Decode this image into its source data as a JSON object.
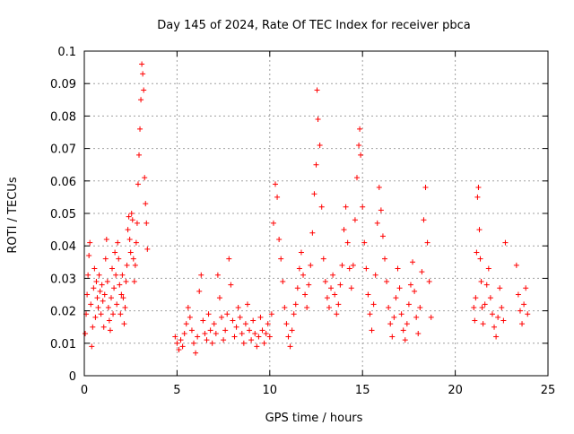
{
  "chart_data": {
    "type": "scatter",
    "title": "Day 145 of 2024, Rate Of TEC Index for receiver pbca",
    "xlabel": "GPS time / hours",
    "ylabel": "ROTI / TECUs",
    "xlim": [
      0,
      25
    ],
    "ylim": [
      0,
      0.1
    ],
    "xticks": [
      "0",
      "5",
      "10",
      "15",
      "20",
      "25"
    ],
    "yticks": [
      "0",
      "0.01",
      "0.02",
      "0.03",
      "0.04",
      "0.05",
      "0.06",
      "0.07",
      "0.08",
      "0.09",
      "0.1"
    ],
    "grid": true,
    "legend": "none",
    "marker": "+",
    "color": "#ff0000",
    "series": [
      {
        "points": [
          [
            0.05,
            0.013
          ],
          [
            0.1,
            0.019
          ],
          [
            0.15,
            0.025
          ],
          [
            0.2,
            0.031
          ],
          [
            0.25,
            0.037
          ],
          [
            0.3,
            0.041
          ],
          [
            0.35,
            0.022
          ],
          [
            0.4,
            0.009
          ],
          [
            0.45,
            0.015
          ],
          [
            0.5,
            0.027
          ],
          [
            0.55,
            0.033
          ],
          [
            0.6,
            0.018
          ],
          [
            0.65,
            0.029
          ],
          [
            0.7,
            0.024
          ],
          [
            0.75,
            0.021
          ],
          [
            0.8,
            0.031
          ],
          [
            0.85,
            0.026
          ],
          [
            0.9,
            0.019
          ],
          [
            0.95,
            0.028
          ],
          [
            1.0,
            0.023
          ],
          [
            1.05,
            0.015
          ],
          [
            1.1,
            0.025
          ],
          [
            1.15,
            0.036
          ],
          [
            1.2,
            0.042
          ],
          [
            1.25,
            0.029
          ],
          [
            1.3,
            0.021
          ],
          [
            1.35,
            0.017
          ],
          [
            1.4,
            0.014
          ],
          [
            1.45,
            0.024
          ],
          [
            1.5,
            0.033
          ],
          [
            1.55,
            0.019
          ],
          [
            1.6,
            0.027
          ],
          [
            1.65,
            0.038
          ],
          [
            1.7,
            0.031
          ],
          [
            1.75,
            0.022
          ],
          [
            1.8,
            0.041
          ],
          [
            1.85,
            0.036
          ],
          [
            1.9,
            0.028
          ],
          [
            1.95,
            0.019
          ],
          [
            2.0,
            0.025
          ],
          [
            2.05,
            0.031
          ],
          [
            2.1,
            0.024
          ],
          [
            2.15,
            0.016
          ],
          [
            2.2,
            0.021
          ],
          [
            2.25,
            0.029
          ],
          [
            2.3,
            0.034
          ],
          [
            2.35,
            0.045
          ],
          [
            2.4,
            0.049
          ],
          [
            2.45,
            0.042
          ],
          [
            2.5,
            0.038
          ],
          [
            2.55,
            0.05
          ],
          [
            2.6,
            0.048
          ],
          [
            2.65,
            0.036
          ],
          [
            2.7,
            0.029
          ],
          [
            2.75,
            0.034
          ],
          [
            2.8,
            0.041
          ],
          [
            2.85,
            0.047
          ],
          [
            2.9,
            0.059
          ],
          [
            2.95,
            0.068
          ],
          [
            3.0,
            0.076
          ],
          [
            3.05,
            0.085
          ],
          [
            3.1,
            0.096
          ],
          [
            3.15,
            0.093
          ],
          [
            3.2,
            0.088
          ],
          [
            3.25,
            0.061
          ],
          [
            3.3,
            0.053
          ],
          [
            3.35,
            0.047
          ],
          [
            3.4,
            0.039
          ],
          [
            4.9,
            0.012
          ],
          [
            5.0,
            0.01
          ],
          [
            5.1,
            0.008
          ],
          [
            5.2,
            0.011
          ],
          [
            5.3,
            0.009
          ],
          [
            5.4,
            0.013
          ],
          [
            5.5,
            0.016
          ],
          [
            5.6,
            0.021
          ],
          [
            5.7,
            0.018
          ],
          [
            5.8,
            0.014
          ],
          [
            5.9,
            0.01
          ],
          [
            6.0,
            0.007
          ],
          [
            6.1,
            0.012
          ],
          [
            6.2,
            0.026
          ],
          [
            6.3,
            0.031
          ],
          [
            6.4,
            0.017
          ],
          [
            6.5,
            0.013
          ],
          [
            6.6,
            0.011
          ],
          [
            6.7,
            0.019
          ],
          [
            6.8,
            0.014
          ],
          [
            6.9,
            0.01
          ],
          [
            7.0,
            0.016
          ],
          [
            7.1,
            0.013
          ],
          [
            7.2,
            0.031
          ],
          [
            7.3,
            0.024
          ],
          [
            7.4,
            0.018
          ],
          [
            7.5,
            0.011
          ],
          [
            7.6,
            0.014
          ],
          [
            7.7,
            0.019
          ],
          [
            7.8,
            0.036
          ],
          [
            7.9,
            0.028
          ],
          [
            8.0,
            0.017
          ],
          [
            8.1,
            0.012
          ],
          [
            8.2,
            0.015
          ],
          [
            8.3,
            0.021
          ],
          [
            8.4,
            0.018
          ],
          [
            8.5,
            0.013
          ],
          [
            8.6,
            0.01
          ],
          [
            8.7,
            0.016
          ],
          [
            8.8,
            0.022
          ],
          [
            8.9,
            0.014
          ],
          [
            9.0,
            0.011
          ],
          [
            9.1,
            0.017
          ],
          [
            9.2,
            0.013
          ],
          [
            9.3,
            0.009
          ],
          [
            9.4,
            0.012
          ],
          [
            9.5,
            0.018
          ],
          [
            9.6,
            0.014
          ],
          [
            9.7,
            0.01
          ],
          [
            9.8,
            0.013
          ],
          [
            9.9,
            0.016
          ],
          [
            10.0,
            0.012
          ],
          [
            10.1,
            0.019
          ],
          [
            10.2,
            0.047
          ],
          [
            10.3,
            0.059
          ],
          [
            10.4,
            0.055
          ],
          [
            10.5,
            0.042
          ],
          [
            10.6,
            0.036
          ],
          [
            10.7,
            0.029
          ],
          [
            10.8,
            0.021
          ],
          [
            10.9,
            0.016
          ],
          [
            11.0,
            0.012
          ],
          [
            11.1,
            0.009
          ],
          [
            11.2,
            0.014
          ],
          [
            11.3,
            0.019
          ],
          [
            11.4,
            0.022
          ],
          [
            11.5,
            0.027
          ],
          [
            11.6,
            0.033
          ],
          [
            11.7,
            0.038
          ],
          [
            11.8,
            0.031
          ],
          [
            11.9,
            0.025
          ],
          [
            12.0,
            0.021
          ],
          [
            12.1,
            0.028
          ],
          [
            12.2,
            0.034
          ],
          [
            12.3,
            0.044
          ],
          [
            12.4,
            0.056
          ],
          [
            12.5,
            0.065
          ],
          [
            12.55,
            0.088
          ],
          [
            12.6,
            0.079
          ],
          [
            12.7,
            0.071
          ],
          [
            12.8,
            0.052
          ],
          [
            12.9,
            0.036
          ],
          [
            13.0,
            0.029
          ],
          [
            13.1,
            0.024
          ],
          [
            13.2,
            0.021
          ],
          [
            13.3,
            0.027
          ],
          [
            13.4,
            0.031
          ],
          [
            13.5,
            0.025
          ],
          [
            13.6,
            0.019
          ],
          [
            13.7,
            0.022
          ],
          [
            13.8,
            0.028
          ],
          [
            13.9,
            0.034
          ],
          [
            14.0,
            0.045
          ],
          [
            14.1,
            0.052
          ],
          [
            14.2,
            0.041
          ],
          [
            14.3,
            0.033
          ],
          [
            14.4,
            0.027
          ],
          [
            14.5,
            0.034
          ],
          [
            14.6,
            0.048
          ],
          [
            14.7,
            0.061
          ],
          [
            14.8,
            0.071
          ],
          [
            14.85,
            0.076
          ],
          [
            14.9,
            0.068
          ],
          [
            15.0,
            0.052
          ],
          [
            15.1,
            0.041
          ],
          [
            15.2,
            0.033
          ],
          [
            15.3,
            0.025
          ],
          [
            15.4,
            0.019
          ],
          [
            15.5,
            0.014
          ],
          [
            15.6,
            0.022
          ],
          [
            15.7,
            0.031
          ],
          [
            15.8,
            0.047
          ],
          [
            15.9,
            0.058
          ],
          [
            16.0,
            0.051
          ],
          [
            16.1,
            0.043
          ],
          [
            16.2,
            0.036
          ],
          [
            16.3,
            0.029
          ],
          [
            16.4,
            0.021
          ],
          [
            16.5,
            0.016
          ],
          [
            16.6,
            0.012
          ],
          [
            16.7,
            0.018
          ],
          [
            16.8,
            0.024
          ],
          [
            16.9,
            0.033
          ],
          [
            17.0,
            0.027
          ],
          [
            17.1,
            0.019
          ],
          [
            17.2,
            0.014
          ],
          [
            17.3,
            0.011
          ],
          [
            17.4,
            0.016
          ],
          [
            17.5,
            0.022
          ],
          [
            17.6,
            0.028
          ],
          [
            17.7,
            0.035
          ],
          [
            17.8,
            0.026
          ],
          [
            17.9,
            0.018
          ],
          [
            18.0,
            0.013
          ],
          [
            18.1,
            0.021
          ],
          [
            18.2,
            0.032
          ],
          [
            18.3,
            0.048
          ],
          [
            18.4,
            0.058
          ],
          [
            18.5,
            0.041
          ],
          [
            18.6,
            0.029
          ],
          [
            18.7,
            0.018
          ],
          [
            21.0,
            0.021
          ],
          [
            21.05,
            0.017
          ],
          [
            21.1,
            0.024
          ],
          [
            21.15,
            0.038
          ],
          [
            21.2,
            0.055
          ],
          [
            21.25,
            0.058
          ],
          [
            21.3,
            0.045
          ],
          [
            21.35,
            0.036
          ],
          [
            21.4,
            0.029
          ],
          [
            21.45,
            0.021
          ],
          [
            21.5,
            0.016
          ],
          [
            21.6,
            0.022
          ],
          [
            21.7,
            0.028
          ],
          [
            21.8,
            0.033
          ],
          [
            21.9,
            0.024
          ],
          [
            22.0,
            0.019
          ],
          [
            22.1,
            0.015
          ],
          [
            22.2,
            0.012
          ],
          [
            22.3,
            0.018
          ],
          [
            22.4,
            0.027
          ],
          [
            22.5,
            0.021
          ],
          [
            22.6,
            0.017
          ],
          [
            22.7,
            0.041
          ],
          [
            23.3,
            0.034
          ],
          [
            23.4,
            0.025
          ],
          [
            23.5,
            0.02
          ],
          [
            23.6,
            0.016
          ],
          [
            23.7,
            0.022
          ],
          [
            23.8,
            0.027
          ],
          [
            23.9,
            0.019
          ]
        ]
      }
    ]
  }
}
